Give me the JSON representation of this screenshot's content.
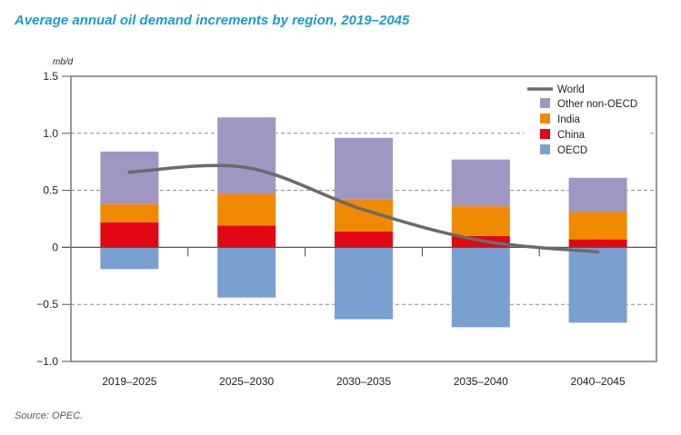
{
  "title": "Average annual oil demand increments by region, 2019–2045",
  "source": "Source: OPEC.",
  "chart_data": {
    "type": "bar",
    "stacked": true,
    "title": "Average annual oil demand increments by region, 2019–2045",
    "ylabel": "mb/d",
    "xlabel": "",
    "ylim": [
      -1.0,
      1.5
    ],
    "yticks": [
      1.5,
      1.0,
      0.5,
      0,
      -0.5,
      -1.0
    ],
    "ytick_labels": [
      "1.5",
      "1.0",
      "0.5",
      "0",
      "−0.5",
      "−1.0"
    ],
    "grid": "dashed horizontal at ±0.5 and 1.0",
    "legend_position": "top-right",
    "categories": [
      "2019–2025",
      "2025–2030",
      "2030–2035",
      "2035–2040",
      "2040–2045"
    ],
    "series": [
      {
        "name": "OECD",
        "color": "#7a9fd1",
        "values": [
          -0.19,
          -0.44,
          -0.63,
          -0.7,
          -0.66
        ]
      },
      {
        "name": "China",
        "color": "#e30613",
        "values": [
          0.22,
          0.19,
          0.14,
          0.1,
          0.07
        ]
      },
      {
        "name": "India",
        "color": "#f08a00",
        "values": [
          0.16,
          0.28,
          0.28,
          0.26,
          0.24
        ]
      },
      {
        "name": "Other non-OECD",
        "color": "#a096c2",
        "values": [
          0.46,
          0.67,
          0.54,
          0.41,
          0.3
        ]
      }
    ],
    "line": {
      "name": "World",
      "color": "#6b6b6b",
      "values": [
        0.66,
        0.7,
        0.33,
        0.06,
        -0.04
      ]
    },
    "legend": [
      "World",
      "Other non-OECD",
      "India",
      "China",
      "OECD"
    ]
  }
}
